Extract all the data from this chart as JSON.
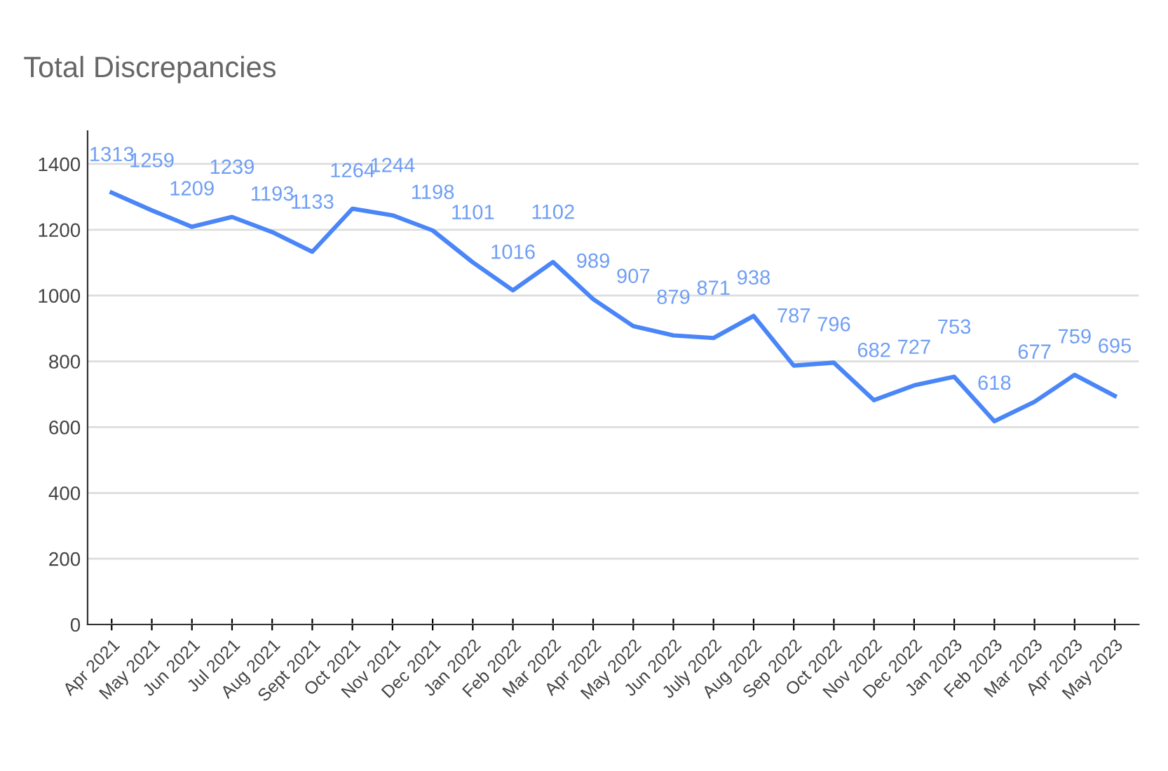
{
  "chart_data": {
    "type": "line",
    "title": "Total Discrepancies",
    "categories": [
      "Apr 2021",
      "May 2021",
      "Jun 2021",
      "Jul 2021",
      "Aug 2021",
      "Sept 2021",
      "Oct 2021",
      "Nov 2021",
      "Dec 2021",
      "Jan 2022",
      "Feb 2022",
      "Mar 2022",
      "Apr 2022",
      "May 2022",
      "Jun 2022",
      "July 2022",
      "Aug 2022",
      "Sep 2022",
      "Oct 2022",
      "Nov 2022",
      "Dec 2022",
      "Jan 2023",
      "Feb 2023",
      "Mar 2023",
      "Apr 2023",
      "May 2023"
    ],
    "series": [
      {
        "color": "#4a86f7",
        "values": [
          1313,
          1259,
          1209,
          1239,
          1193,
          1133,
          1264,
          1244,
          1198,
          1101,
          1016,
          1102,
          989,
          907,
          879,
          871,
          938,
          787,
          796,
          682,
          727,
          753,
          618,
          677,
          759,
          695
        ]
      }
    ],
    "data_labels": true,
    "ylim": [
      0,
      1500
    ],
    "yticks": [
      0,
      200,
      400,
      600,
      800,
      1000,
      1200,
      1400
    ],
    "grid": "y",
    "legend": false,
    "marker": "none",
    "line_style": "solid"
  }
}
